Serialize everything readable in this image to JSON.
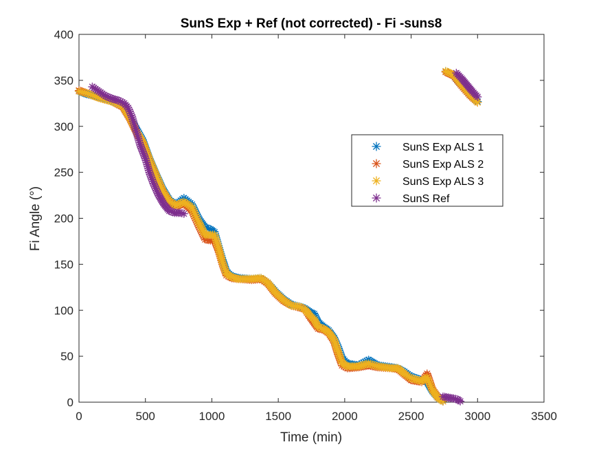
{
  "chart_data": {
    "type": "scatter",
    "title": "SunS Exp + Ref  (not corrected) - Fi -suns8",
    "xlabel": "Time (min)",
    "ylabel": "Fi Angle (°)",
    "xlim": [
      0,
      3500
    ],
    "ylim": [
      0,
      400
    ],
    "xticks": [
      0,
      500,
      1000,
      1500,
      2000,
      2500,
      3000,
      3500
    ],
    "yticks": [
      0,
      50,
      100,
      150,
      200,
      250,
      300,
      350,
      400
    ],
    "grid": false,
    "legend_position": "right-center",
    "marker": "asterisk",
    "series": [
      {
        "name": "SunS Exp ALS 1",
        "color": "#0072BD",
        "points": [
          [
            0,
            338
          ],
          [
            60,
            335
          ],
          [
            150,
            332
          ],
          [
            250,
            328
          ],
          [
            330,
            322
          ],
          [
            380,
            310
          ],
          [
            430,
            298
          ],
          [
            480,
            285
          ],
          [
            530,
            265
          ],
          [
            580,
            248
          ],
          [
            630,
            232
          ],
          [
            680,
            220
          ],
          [
            730,
            215
          ],
          [
            790,
            222
          ],
          [
            850,
            215
          ],
          [
            900,
            200
          ],
          [
            950,
            190
          ],
          [
            990,
            188
          ],
          [
            1020,
            185
          ],
          [
            1050,
            170
          ],
          [
            1080,
            155
          ],
          [
            1110,
            142
          ],
          [
            1150,
            137
          ],
          [
            1200,
            135
          ],
          [
            1300,
            134
          ],
          [
            1370,
            135
          ],
          [
            1420,
            130
          ],
          [
            1480,
            120
          ],
          [
            1540,
            112
          ],
          [
            1600,
            106
          ],
          [
            1660,
            104
          ],
          [
            1700,
            102
          ],
          [
            1740,
            98
          ],
          [
            1770,
            96
          ],
          [
            1800,
            87
          ],
          [
            1840,
            82
          ],
          [
            1880,
            78
          ],
          [
            1920,
            70
          ],
          [
            1950,
            60
          ],
          [
            1980,
            48
          ],
          [
            2020,
            42
          ],
          [
            2100,
            40
          ],
          [
            2180,
            46
          ],
          [
            2250,
            40
          ],
          [
            2350,
            38
          ],
          [
            2400,
            37
          ],
          [
            2450,
            33
          ],
          [
            2500,
            28
          ],
          [
            2580,
            24
          ],
          [
            2620,
            22
          ],
          [
            2660,
            12
          ],
          [
            2700,
            5
          ],
          [
            2740,
            1
          ],
          [
            2760,
            360
          ],
          [
            2820,
            355
          ],
          [
            2880,
            345
          ],
          [
            2940,
            335
          ],
          [
            3000,
            327
          ]
        ]
      },
      {
        "name": "SunS Exp ALS 2",
        "color": "#D95319",
        "points": [
          [
            0,
            339
          ],
          [
            60,
            336
          ],
          [
            150,
            331
          ],
          [
            250,
            327
          ],
          [
            330,
            321
          ],
          [
            380,
            309
          ],
          [
            430,
            294
          ],
          [
            480,
            282
          ],
          [
            530,
            262
          ],
          [
            580,
            245
          ],
          [
            630,
            229
          ],
          [
            680,
            218
          ],
          [
            730,
            213
          ],
          [
            790,
            216
          ],
          [
            850,
            208
          ],
          [
            900,
            192
          ],
          [
            950,
            177
          ],
          [
            990,
            176
          ],
          [
            1020,
            176
          ],
          [
            1050,
            165
          ],
          [
            1080,
            150
          ],
          [
            1110,
            138
          ],
          [
            1150,
            135
          ],
          [
            1200,
            134
          ],
          [
            1300,
            133
          ],
          [
            1370,
            134
          ],
          [
            1420,
            129
          ],
          [
            1480,
            118
          ],
          [
            1540,
            110
          ],
          [
            1600,
            105
          ],
          [
            1660,
            103
          ],
          [
            1700,
            101
          ],
          [
            1740,
            92
          ],
          [
            1770,
            86
          ],
          [
            1800,
            80
          ],
          [
            1840,
            79
          ],
          [
            1880,
            75
          ],
          [
            1920,
            66
          ],
          [
            1950,
            52
          ],
          [
            1980,
            40
          ],
          [
            2020,
            37
          ],
          [
            2100,
            38
          ],
          [
            2180,
            40
          ],
          [
            2250,
            38
          ],
          [
            2350,
            37
          ],
          [
            2400,
            36
          ],
          [
            2450,
            30
          ],
          [
            2500,
            24
          ],
          [
            2580,
            22
          ],
          [
            2620,
            31
          ],
          [
            2660,
            14
          ],
          [
            2700,
            6
          ],
          [
            2740,
            1
          ],
          [
            2760,
            359
          ],
          [
            2820,
            355
          ],
          [
            2880,
            344
          ],
          [
            2940,
            334
          ],
          [
            3000,
            326
          ]
        ]
      },
      {
        "name": "SunS Exp ALS 3",
        "color": "#EDB120",
        "points": [
          [
            0,
            338
          ],
          [
            60,
            336
          ],
          [
            150,
            331
          ],
          [
            250,
            327
          ],
          [
            330,
            322
          ],
          [
            380,
            310
          ],
          [
            430,
            295
          ],
          [
            480,
            283
          ],
          [
            530,
            264
          ],
          [
            580,
            247
          ],
          [
            630,
            230
          ],
          [
            680,
            219
          ],
          [
            730,
            214
          ],
          [
            790,
            218
          ],
          [
            850,
            212
          ],
          [
            900,
            196
          ],
          [
            950,
            182
          ],
          [
            990,
            182
          ],
          [
            1020,
            182
          ],
          [
            1050,
            168
          ],
          [
            1080,
            152
          ],
          [
            1110,
            140
          ],
          [
            1150,
            136
          ],
          [
            1200,
            134
          ],
          [
            1300,
            134
          ],
          [
            1370,
            135
          ],
          [
            1420,
            130
          ],
          [
            1480,
            119
          ],
          [
            1540,
            111
          ],
          [
            1600,
            105
          ],
          [
            1660,
            104
          ],
          [
            1700,
            101
          ],
          [
            1740,
            94
          ],
          [
            1770,
            90
          ],
          [
            1800,
            82
          ],
          [
            1840,
            80
          ],
          [
            1880,
            76
          ],
          [
            1920,
            68
          ],
          [
            1950,
            55
          ],
          [
            1980,
            43
          ],
          [
            2020,
            39
          ],
          [
            2100,
            39
          ],
          [
            2180,
            42
          ],
          [
            2250,
            39
          ],
          [
            2350,
            37
          ],
          [
            2400,
            37
          ],
          [
            2450,
            31
          ],
          [
            2500,
            26
          ],
          [
            2580,
            23
          ],
          [
            2620,
            27
          ],
          [
            2660,
            13
          ],
          [
            2700,
            5
          ],
          [
            2740,
            1
          ],
          [
            2760,
            360
          ],
          [
            2820,
            356
          ],
          [
            2880,
            345
          ],
          [
            2940,
            335
          ],
          [
            3000,
            326
          ]
        ]
      },
      {
        "name": "SunS Ref",
        "color": "#7E2F8E",
        "points": [
          [
            100,
            343
          ],
          [
            150,
            338
          ],
          [
            200,
            333
          ],
          [
            250,
            330
          ],
          [
            300,
            328
          ],
          [
            340,
            325
          ],
          [
            370,
            320
          ],
          [
            400,
            310
          ],
          [
            430,
            295
          ],
          [
            460,
            280
          ],
          [
            500,
            265
          ],
          [
            530,
            250
          ],
          [
            560,
            238
          ],
          [
            600,
            225
          ],
          [
            640,
            215
          ],
          [
            680,
            208
          ],
          [
            720,
            206
          ],
          [
            760,
            206
          ],
          [
            790,
            205
          ],
          [
            2740,
            6
          ],
          [
            2780,
            5
          ],
          [
            2820,
            4
          ],
          [
            2850,
            3
          ],
          [
            2870,
            1
          ],
          [
            2840,
            358
          ],
          [
            2880,
            352
          ],
          [
            2920,
            345
          ],
          [
            2960,
            338
          ],
          [
            3000,
            332
          ]
        ]
      }
    ]
  }
}
